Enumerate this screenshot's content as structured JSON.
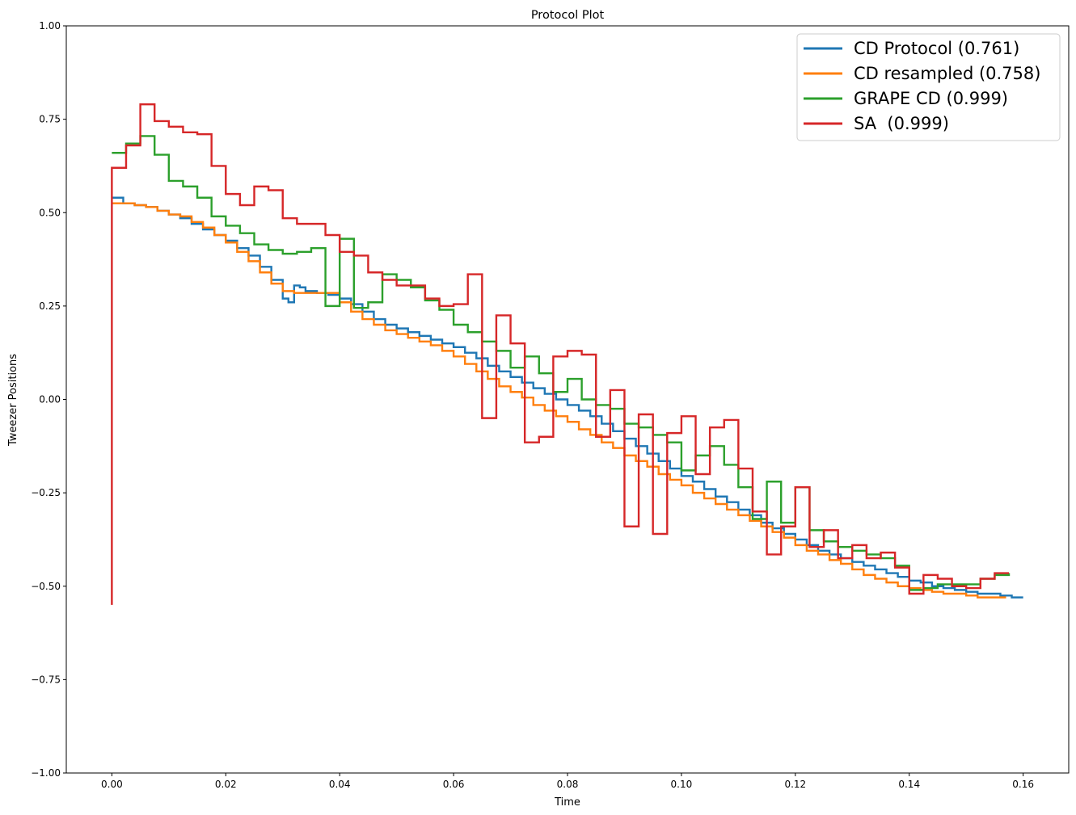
{
  "chart_data": {
    "type": "line",
    "title": "Protocol Plot",
    "xlabel": "Time",
    "ylabel": "Tweezer Positions",
    "xlim": [
      -0.008,
      0.168
    ],
    "ylim": [
      -1.0,
      1.0
    ],
    "x_ticks": [
      0.0,
      0.02,
      0.04,
      0.06,
      0.08,
      0.1,
      0.12,
      0.14,
      0.16
    ],
    "x_tick_labels": [
      "0.00",
      "0.02",
      "0.04",
      "0.06",
      "0.08",
      "0.10",
      "0.12",
      "0.14",
      "0.16"
    ],
    "y_ticks": [
      -1.0,
      -0.75,
      -0.5,
      -0.25,
      0.0,
      0.25,
      0.5,
      0.75,
      1.0
    ],
    "y_tick_labels": [
      "−1.00",
      "−0.75",
      "−0.50",
      "−0.25",
      "0.00",
      "0.25",
      "0.50",
      "0.75",
      "1.00"
    ],
    "grid": false,
    "legend_position": "top-right",
    "step_style": "post",
    "series": [
      {
        "name": "CD Protocol (0.761)",
        "color": "#1f77b4",
        "x": [
          0.0,
          0.002,
          0.004,
          0.006,
          0.008,
          0.01,
          0.012,
          0.014,
          0.016,
          0.018,
          0.02,
          0.022,
          0.024,
          0.026,
          0.028,
          0.03,
          0.031,
          0.032,
          0.033,
          0.034,
          0.036,
          0.038,
          0.04,
          0.042,
          0.044,
          0.046,
          0.048,
          0.05,
          0.052,
          0.054,
          0.056,
          0.058,
          0.06,
          0.062,
          0.064,
          0.066,
          0.068,
          0.07,
          0.072,
          0.074,
          0.076,
          0.078,
          0.08,
          0.082,
          0.084,
          0.086,
          0.088,
          0.09,
          0.092,
          0.094,
          0.096,
          0.098,
          0.1,
          0.102,
          0.104,
          0.106,
          0.108,
          0.11,
          0.112,
          0.114,
          0.116,
          0.118,
          0.12,
          0.122,
          0.124,
          0.126,
          0.128,
          0.13,
          0.132,
          0.134,
          0.136,
          0.138,
          0.14,
          0.142,
          0.144,
          0.146,
          0.148,
          0.15,
          0.152,
          0.154,
          0.156,
          0.158,
          0.16
        ],
        "y": [
          0.54,
          0.525,
          0.52,
          0.515,
          0.505,
          0.495,
          0.485,
          0.47,
          0.455,
          0.44,
          0.425,
          0.405,
          0.385,
          0.355,
          0.32,
          0.27,
          0.26,
          0.305,
          0.3,
          0.29,
          0.285,
          0.28,
          0.27,
          0.255,
          0.235,
          0.215,
          0.2,
          0.19,
          0.18,
          0.17,
          0.16,
          0.15,
          0.14,
          0.125,
          0.11,
          0.09,
          0.075,
          0.06,
          0.045,
          0.03,
          0.015,
          0.0,
          -0.015,
          -0.03,
          -0.045,
          -0.065,
          -0.085,
          -0.105,
          -0.125,
          -0.145,
          -0.165,
          -0.185,
          -0.205,
          -0.22,
          -0.24,
          -0.26,
          -0.275,
          -0.295,
          -0.31,
          -0.33,
          -0.345,
          -0.36,
          -0.375,
          -0.39,
          -0.405,
          -0.415,
          -0.425,
          -0.435,
          -0.445,
          -0.455,
          -0.465,
          -0.475,
          -0.485,
          -0.49,
          -0.5,
          -0.505,
          -0.51,
          -0.515,
          -0.52,
          -0.52,
          -0.525,
          -0.53,
          -0.53
        ]
      },
      {
        "name": "CD resampled (0.758)",
        "color": "#ff7f0e",
        "x": [
          0.0,
          0.004,
          0.006,
          0.008,
          0.01,
          0.012,
          0.014,
          0.016,
          0.018,
          0.02,
          0.022,
          0.024,
          0.026,
          0.028,
          0.03,
          0.032,
          0.034,
          0.036,
          0.038,
          0.04,
          0.042,
          0.044,
          0.046,
          0.048,
          0.05,
          0.052,
          0.054,
          0.056,
          0.058,
          0.06,
          0.062,
          0.064,
          0.066,
          0.068,
          0.07,
          0.072,
          0.074,
          0.076,
          0.078,
          0.08,
          0.082,
          0.084,
          0.086,
          0.088,
          0.09,
          0.092,
          0.094,
          0.096,
          0.098,
          0.1,
          0.102,
          0.104,
          0.106,
          0.108,
          0.11,
          0.112,
          0.114,
          0.116,
          0.118,
          0.12,
          0.122,
          0.124,
          0.126,
          0.128,
          0.13,
          0.132,
          0.134,
          0.136,
          0.138,
          0.14,
          0.142,
          0.144,
          0.146,
          0.148,
          0.15,
          0.152,
          0.154,
          0.156,
          0.157
        ],
        "y": [
          0.525,
          0.52,
          0.515,
          0.505,
          0.495,
          0.49,
          0.475,
          0.46,
          0.44,
          0.42,
          0.395,
          0.37,
          0.34,
          0.31,
          0.29,
          0.285,
          0.285,
          0.285,
          0.285,
          0.26,
          0.235,
          0.215,
          0.2,
          0.185,
          0.175,
          0.165,
          0.155,
          0.145,
          0.13,
          0.115,
          0.095,
          0.075,
          0.055,
          0.035,
          0.02,
          0.005,
          -0.015,
          -0.03,
          -0.045,
          -0.06,
          -0.08,
          -0.095,
          -0.115,
          -0.13,
          -0.15,
          -0.165,
          -0.18,
          -0.2,
          -0.215,
          -0.23,
          -0.25,
          -0.265,
          -0.28,
          -0.295,
          -0.31,
          -0.325,
          -0.34,
          -0.355,
          -0.37,
          -0.39,
          -0.405,
          -0.415,
          -0.43,
          -0.44,
          -0.455,
          -0.47,
          -0.48,
          -0.49,
          -0.5,
          -0.505,
          -0.51,
          -0.515,
          -0.52,
          -0.52,
          -0.525,
          -0.53,
          -0.53,
          -0.53,
          -0.53
        ]
      },
      {
        "name": "GRAPE CD (0.999)",
        "color": "#2ca02c",
        "x": [
          0.0,
          0.0025,
          0.005,
          0.0075,
          0.01,
          0.0125,
          0.015,
          0.0175,
          0.02,
          0.0225,
          0.025,
          0.0275,
          0.03,
          0.0325,
          0.035,
          0.0375,
          0.04,
          0.0425,
          0.045,
          0.0475,
          0.05,
          0.0525,
          0.055,
          0.0575,
          0.06,
          0.0625,
          0.065,
          0.0675,
          0.07,
          0.0725,
          0.075,
          0.0775,
          0.08,
          0.0825,
          0.085,
          0.0875,
          0.09,
          0.0925,
          0.095,
          0.0975,
          0.1,
          0.1025,
          0.105,
          0.1075,
          0.11,
          0.1125,
          0.115,
          0.1175,
          0.12,
          0.1225,
          0.125,
          0.1275,
          0.13,
          0.1325,
          0.135,
          0.1375,
          0.14,
          0.1425,
          0.145,
          0.1475,
          0.15,
          0.1525,
          0.155,
          0.1575
        ],
        "y": [
          0.66,
          0.685,
          0.705,
          0.655,
          0.585,
          0.57,
          0.54,
          0.49,
          0.465,
          0.445,
          0.415,
          0.4,
          0.39,
          0.395,
          0.405,
          0.25,
          0.43,
          0.245,
          0.26,
          0.335,
          0.32,
          0.3,
          0.265,
          0.24,
          0.2,
          0.18,
          0.155,
          0.13,
          0.085,
          0.115,
          0.07,
          0.02,
          0.055,
          0.0,
          -0.015,
          -0.025,
          -0.065,
          -0.075,
          -0.095,
          -0.115,
          -0.19,
          -0.15,
          -0.125,
          -0.175,
          -0.235,
          -0.32,
          -0.22,
          -0.33,
          -0.235,
          -0.35,
          -0.38,
          -0.395,
          -0.405,
          -0.415,
          -0.425,
          -0.445,
          -0.51,
          -0.505,
          -0.495,
          -0.495,
          -0.495,
          -0.48,
          -0.47,
          -0.465
        ]
      },
      {
        "name": "SA  (0.999)",
        "color": "#d62728",
        "x": [
          0.0,
          0.0025,
          0.005,
          0.0075,
          0.01,
          0.0125,
          0.015,
          0.0175,
          0.02,
          0.0225,
          0.025,
          0.0275,
          0.03,
          0.0325,
          0.035,
          0.0375,
          0.04,
          0.0425,
          0.045,
          0.0475,
          0.05,
          0.0525,
          0.055,
          0.0575,
          0.06,
          0.0625,
          0.065,
          0.0675,
          0.07,
          0.0725,
          0.075,
          0.0775,
          0.08,
          0.0825,
          0.085,
          0.0875,
          0.09,
          0.0925,
          0.095,
          0.0975,
          0.1,
          0.1025,
          0.105,
          0.1075,
          0.11,
          0.1125,
          0.115,
          0.1175,
          0.12,
          0.1225,
          0.125,
          0.1275,
          0.13,
          0.1325,
          0.135,
          0.1375,
          0.14,
          0.1425,
          0.145,
          0.1475,
          0.15,
          0.1525,
          0.155,
          0.1575
        ],
        "y": [
          0.62,
          0.68,
          0.79,
          0.745,
          0.73,
          0.715,
          0.71,
          0.625,
          0.55,
          0.52,
          0.57,
          0.56,
          0.485,
          0.47,
          0.47,
          0.44,
          0.395,
          0.385,
          0.34,
          0.32,
          0.305,
          0.305,
          0.27,
          0.25,
          0.255,
          0.335,
          -0.05,
          0.225,
          0.15,
          -0.115,
          -0.1,
          0.115,
          0.13,
          0.12,
          -0.1,
          0.025,
          -0.34,
          -0.04,
          -0.36,
          -0.09,
          -0.045,
          -0.2,
          -0.075,
          -0.055,
          -0.185,
          -0.3,
          -0.415,
          -0.34,
          -0.235,
          -0.395,
          -0.35,
          -0.425,
          -0.39,
          -0.425,
          -0.41,
          -0.45,
          -0.52,
          -0.47,
          -0.48,
          -0.5,
          -0.505,
          -0.48,
          -0.465,
          -0.465
        ],
        "initial_spike_y": -0.55
      }
    ]
  }
}
